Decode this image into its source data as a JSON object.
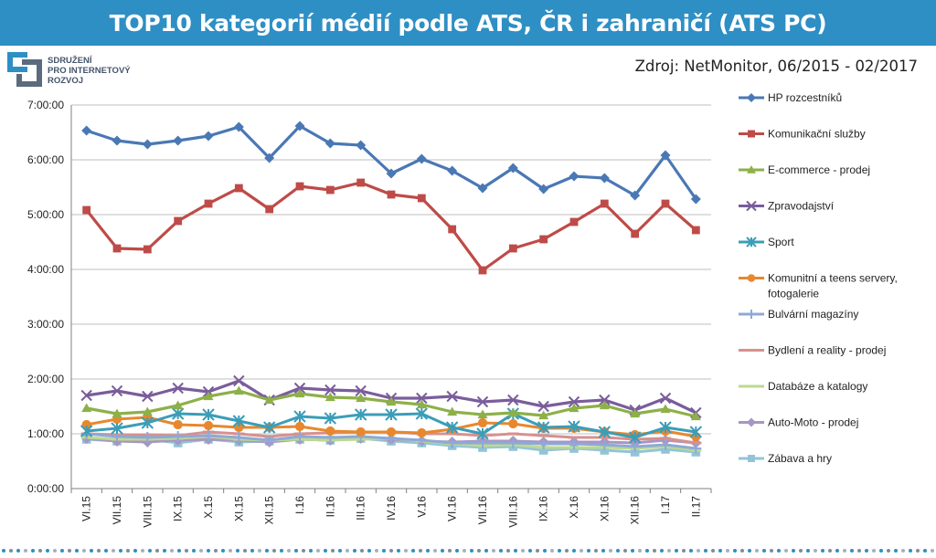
{
  "header": {
    "title": "TOP10 kategorií médií podle ATS, ČR i zahraničí (ATS PC)"
  },
  "logo": {
    "lines": [
      "SDRUŽENÍ",
      "PRO INTERNETOVÝ",
      "ROZVOJ"
    ]
  },
  "source_note": "Zdroj: NetMonitor, 06/2015 - 02/2017",
  "colors": {
    "title_bar": "#2e8fc4",
    "grid": "#bfbfbf"
  },
  "chart_data": {
    "type": "line",
    "categories": [
      "VI.15",
      "VII.15",
      "VIII.15",
      "IX.15",
      "X.15",
      "XI.15",
      "XII.15",
      "I.16",
      "II.16",
      "III.16",
      "IV.16",
      "V.16",
      "VI.16",
      "VII.16",
      "VIII.16",
      "IX.16",
      "X.16",
      "XI.16",
      "XII.16",
      "I.17",
      "II.17"
    ],
    "y_ticks": [
      "0:00:00",
      "1:00:00",
      "2:00:00",
      "3:00:00",
      "4:00:00",
      "5:00:00",
      "6:00:00",
      "7:00:00"
    ],
    "ylim": [
      0,
      420
    ],
    "y_unit": "minutes",
    "grid": true,
    "legend_position": "right",
    "series": [
      {
        "name": "HP rozcestníků",
        "color": "#4a78b4",
        "marker": "diamond",
        "values": [
          392,
          381,
          377,
          381,
          386,
          396,
          362,
          397,
          378,
          376,
          345,
          361,
          348,
          329,
          351,
          328,
          342,
          340,
          321,
          365,
          317
        ]
      },
      {
        "name": "Komunikační služby",
        "color": "#be4b48",
        "marker": "square",
        "values": [
          305,
          263,
          262,
          293,
          312,
          329,
          306,
          331,
          327,
          335,
          322,
          318,
          284,
          239,
          263,
          273,
          292,
          312,
          279,
          312,
          283
        ]
      },
      {
        "name": "E-commerce - prodej",
        "color": "#8db048",
        "marker": "triangle",
        "values": [
          88,
          82,
          84,
          91,
          101,
          107,
          97,
          104,
          100,
          99,
          95,
          92,
          84,
          81,
          83,
          80,
          88,
          91,
          82,
          87,
          79
        ]
      },
      {
        "name": "Zpravodajství",
        "color": "#7a5d9c",
        "marker": "x",
        "values": [
          102,
          107,
          101,
          110,
          106,
          118,
          97,
          110,
          108,
          107,
          99,
          99,
          101,
          95,
          97,
          90,
          95,
          97,
          86,
          99,
          83
        ]
      },
      {
        "name": "Sport",
        "color": "#3b9db8",
        "marker": "star",
        "values": [
          63,
          66,
          72,
          82,
          81,
          74,
          67,
          79,
          77,
          81,
          81,
          82,
          67,
          60,
          82,
          67,
          68,
          62,
          56,
          67,
          62
        ]
      },
      {
        "name": "Komunitní a teens servery, fotogalerie",
        "color": "#e7882e",
        "marker": "circle",
        "values": [
          70,
          76,
          78,
          70,
          69,
          67,
          67,
          68,
          63,
          62,
          62,
          61,
          65,
          72,
          71,
          66,
          66,
          62,
          59,
          63,
          57
        ]
      },
      {
        "name": "Bulvární magazíny",
        "color": "#8ea9d8",
        "marker": "plus",
        "values": [
          60,
          57,
          56,
          57,
          58,
          56,
          53,
          57,
          56,
          57,
          55,
          53,
          50,
          50,
          50,
          49,
          49,
          48,
          46,
          48,
          44
        ]
      },
      {
        "name": "Bydlení a reality - prodej",
        "color": "#d8908e",
        "marker": "dash",
        "values": [
          60,
          59,
          59,
          58,
          62,
          60,
          57,
          60,
          61,
          62,
          62,
          60,
          60,
          58,
          60,
          58,
          56,
          56,
          54,
          55,
          50
        ]
      },
      {
        "name": "Databáze a katalogy",
        "color": "#bcd98f",
        "marker": "dash",
        "values": [
          56,
          54,
          54,
          55,
          57,
          54,
          53,
          54,
          53,
          54,
          55,
          52,
          49,
          47,
          48,
          45,
          45,
          45,
          44,
          46,
          42
        ]
      },
      {
        "name": "Auto-Moto - prodej",
        "color": "#a896c2",
        "marker": "diamond",
        "values": [
          55,
          52,
          51,
          53,
          54,
          53,
          51,
          54,
          53,
          55,
          54,
          52,
          51,
          52,
          52,
          51,
          51,
          51,
          50,
          53,
          50
        ]
      },
      {
        "name": "Zábava a hry",
        "color": "#92c4d8",
        "marker": "square",
        "values": [
          54,
          52,
          54,
          50,
          54,
          51,
          52,
          54,
          53,
          55,
          52,
          50,
          47,
          45,
          46,
          42,
          44,
          42,
          40,
          43,
          40
        ]
      }
    ]
  }
}
